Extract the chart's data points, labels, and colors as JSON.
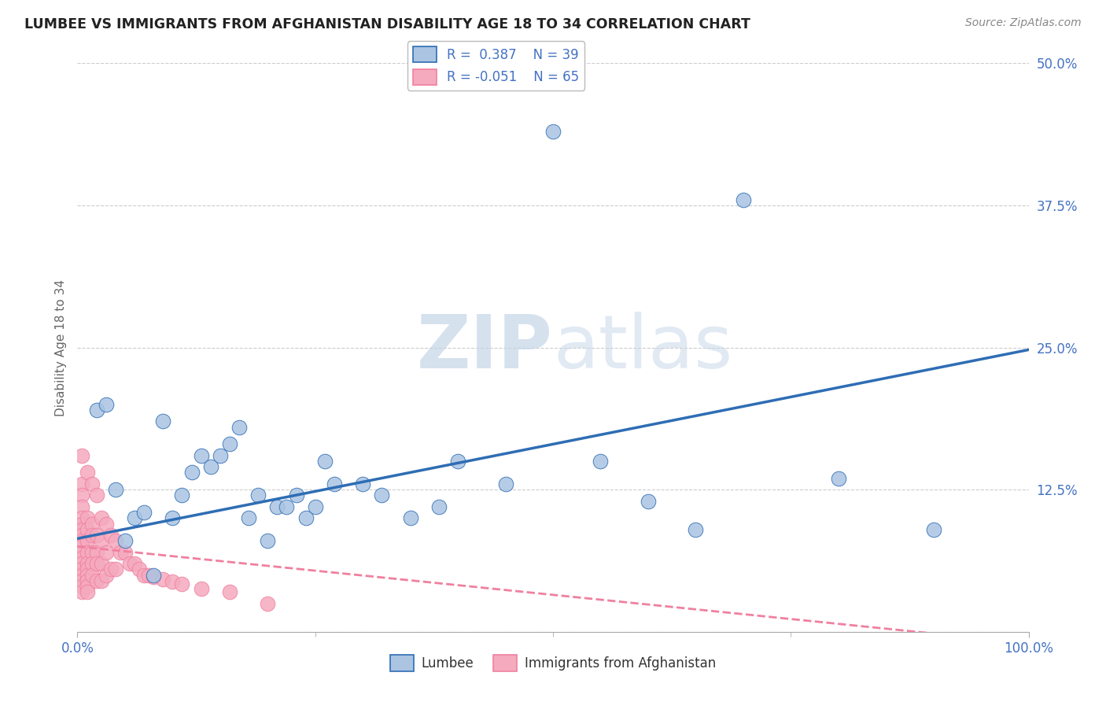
{
  "title": "LUMBEE VS IMMIGRANTS FROM AFGHANISTAN DISABILITY AGE 18 TO 34 CORRELATION CHART",
  "source": "Source: ZipAtlas.com",
  "ylabel": "Disability Age 18 to 34",
  "xlim": [
    0,
    1.0
  ],
  "ylim": [
    0,
    0.5
  ],
  "yticks": [
    0,
    0.125,
    0.25,
    0.375,
    0.5
  ],
  "ytick_labels": [
    "",
    "12.5%",
    "25.0%",
    "37.5%",
    "50.0%"
  ],
  "watermark": "ZIPatlas",
  "lumbee_color": "#aac4e2",
  "afghanistan_color": "#f5aabe",
  "lumbee_line_color": "#2e6db4",
  "afghanistan_line_color": "#f080a0",
  "background_color": "#ffffff",
  "grid_color": "#cccccc",
  "lumbee_x": [
    0.02,
    0.03,
    0.04,
    0.05,
    0.06,
    0.07,
    0.08,
    0.09,
    0.1,
    0.11,
    0.12,
    0.13,
    0.14,
    0.15,
    0.16,
    0.17,
    0.18,
    0.19,
    0.2,
    0.21,
    0.22,
    0.23,
    0.24,
    0.25,
    0.26,
    0.27,
    0.3,
    0.32,
    0.35,
    0.38,
    0.4,
    0.45,
    0.5,
    0.55,
    0.6,
    0.65,
    0.7,
    0.8,
    0.9
  ],
  "lumbee_y": [
    0.195,
    0.2,
    0.125,
    0.08,
    0.1,
    0.105,
    0.05,
    0.185,
    0.1,
    0.12,
    0.14,
    0.155,
    0.145,
    0.155,
    0.165,
    0.18,
    0.1,
    0.12,
    0.08,
    0.11,
    0.11,
    0.12,
    0.1,
    0.11,
    0.15,
    0.13,
    0.13,
    0.12,
    0.1,
    0.11,
    0.15,
    0.13,
    0.44,
    0.15,
    0.115,
    0.09,
    0.38,
    0.135,
    0.09
  ],
  "afghanistan_x": [
    0.005,
    0.005,
    0.005,
    0.005,
    0.005,
    0.005,
    0.005,
    0.005,
    0.005,
    0.005,
    0.005,
    0.005,
    0.005,
    0.005,
    0.005,
    0.005,
    0.005,
    0.005,
    0.01,
    0.01,
    0.01,
    0.01,
    0.01,
    0.01,
    0.01,
    0.01,
    0.01,
    0.01,
    0.01,
    0.015,
    0.015,
    0.015,
    0.015,
    0.015,
    0.015,
    0.02,
    0.02,
    0.02,
    0.02,
    0.02,
    0.025,
    0.025,
    0.025,
    0.025,
    0.03,
    0.03,
    0.03,
    0.035,
    0.035,
    0.04,
    0.04,
    0.045,
    0.05,
    0.055,
    0.06,
    0.065,
    0.07,
    0.075,
    0.08,
    0.09,
    0.1,
    0.11,
    0.13,
    0.16,
    0.2
  ],
  "afghanistan_y": [
    0.155,
    0.13,
    0.12,
    0.11,
    0.1,
    0.095,
    0.09,
    0.085,
    0.08,
    0.075,
    0.07,
    0.065,
    0.06,
    0.055,
    0.05,
    0.045,
    0.04,
    0.035,
    0.14,
    0.1,
    0.09,
    0.08,
    0.07,
    0.06,
    0.055,
    0.05,
    0.045,
    0.04,
    0.035,
    0.13,
    0.095,
    0.085,
    0.07,
    0.06,
    0.05,
    0.12,
    0.085,
    0.07,
    0.06,
    0.045,
    0.1,
    0.08,
    0.06,
    0.045,
    0.095,
    0.07,
    0.05,
    0.085,
    0.055,
    0.08,
    0.055,
    0.07,
    0.07,
    0.06,
    0.06,
    0.055,
    0.05,
    0.05,
    0.048,
    0.046,
    0.044,
    0.042,
    0.038,
    0.035,
    0.025
  ],
  "lumbee_trendline": [
    0.082,
    0.248
  ],
  "afghanistan_trendline": [
    0.075,
    -0.01
  ]
}
